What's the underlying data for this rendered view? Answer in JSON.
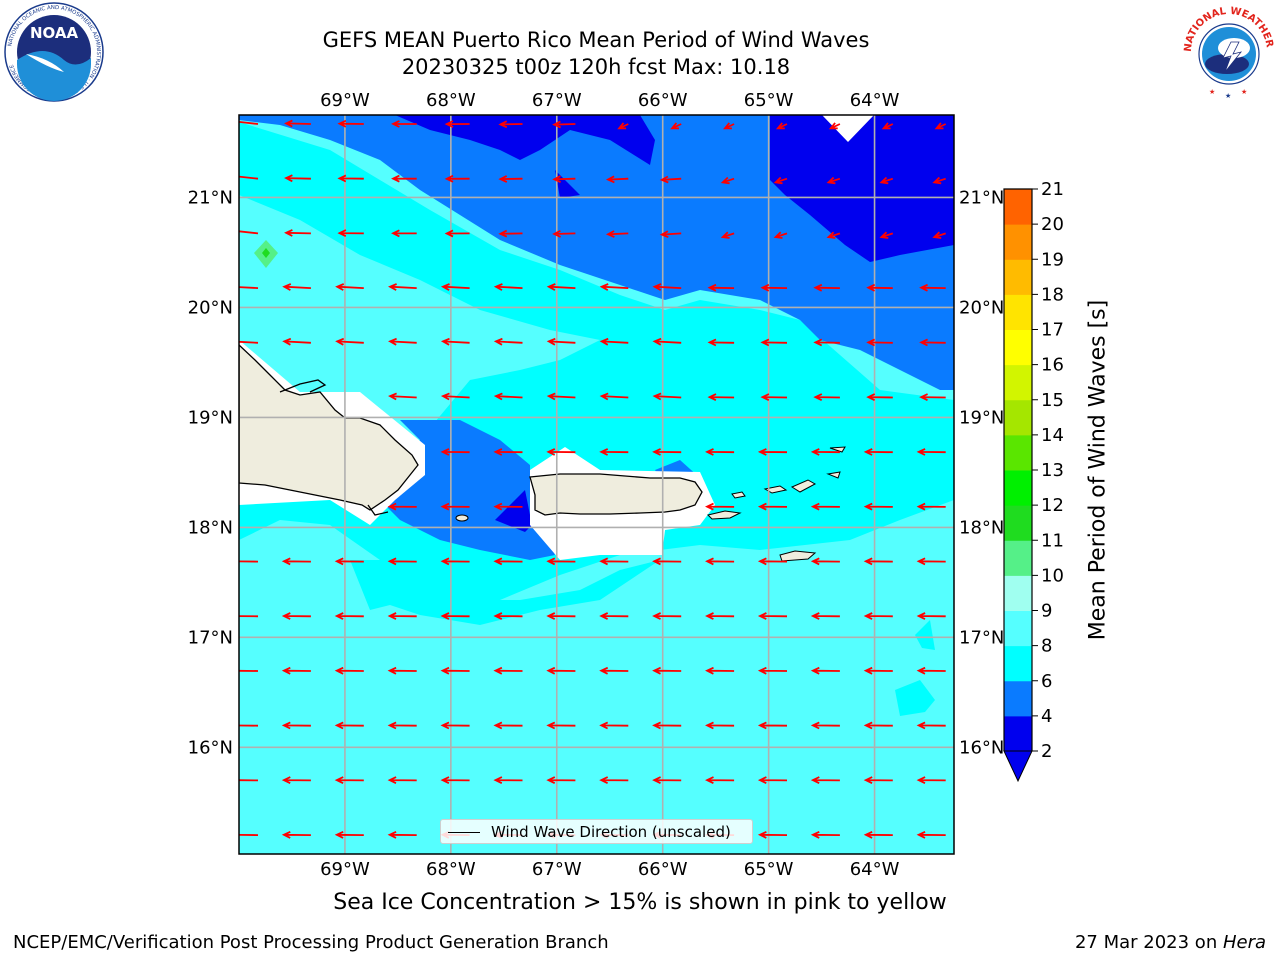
{
  "header": {
    "title_line_1": "GEFS MEAN Puerto Rico Mean Period of Wind Waves",
    "title_line_2": "20230325 t00z 120h fcst   Max: 10.18"
  },
  "logos": {
    "left": "noaa-logo",
    "right": "nws-logo",
    "left_text": "NOAA",
    "left_ring_text": "NATIONAL OCEANIC AND ATMOSPHERIC ADMINISTRATION · U.S. DEPARTMENT OF COMMERCE",
    "right_ring_text": "NATIONAL WEATHER SERVICE"
  },
  "map": {
    "lon_labels": [
      "69°W",
      "68°W",
      "67°W",
      "66°W",
      "65°W",
      "64°W"
    ],
    "lat_labels": [
      "21°N",
      "20°N",
      "19°N",
      "18°N",
      "17°N",
      "16°N"
    ],
    "lon_values": [
      -69,
      -68,
      -67,
      -66,
      -65,
      -64
    ],
    "lat_values": [
      21,
      20,
      19,
      18,
      17,
      16
    ],
    "lon_range": [
      -70,
      -63.25
    ],
    "lat_range": [
      15.03,
      21.75
    ],
    "land_color": "#efedde",
    "arrow_color": "#ff0000",
    "grid_color": "#b0b0b0",
    "legend_label": "Wind Wave Direction (unscaled)"
  },
  "colorbar": {
    "label": "Mean Period of Wind Waves [s]",
    "ticks": [
      "2",
      "4",
      "6",
      "8",
      "9",
      "10",
      "11",
      "12",
      "13",
      "14",
      "15",
      "16",
      "17",
      "18",
      "19",
      "20",
      "21"
    ],
    "colors": [
      "#0000ee",
      "#0a7bff",
      "#00ffff",
      "#55ffff",
      "#a0fff0",
      "#55f088",
      "#1fdc1f",
      "#00f000",
      "#5ae600",
      "#a5e600",
      "#d2f500",
      "#ffff00",
      "#ffe400",
      "#ffbb00",
      "#ff9100",
      "#ff6300",
      "#ff3300",
      "#ff0000"
    ],
    "extend_min_color": "#0000ee"
  },
  "subtitle": "Sea Ice Concentration > 15% is shown in pink to yellow",
  "footer": {
    "left": "NCEP/EMC/Verification Post Processing Product Generation Branch",
    "right_date": "27 Mar 2023 on ",
    "right_host": "Hera"
  }
}
